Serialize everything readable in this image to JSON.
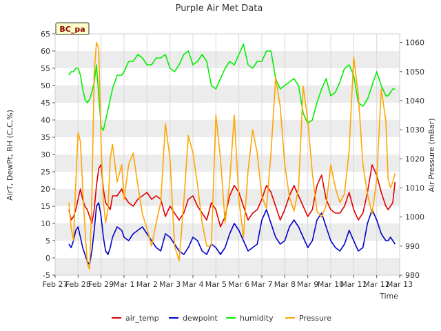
{
  "chart_data": {
    "type": "line",
    "title": "Purple Air Met Data",
    "xlabel": "Time",
    "ylabel_left": "AirT, DewPt, RH (C,C,%)",
    "ylabel_right": "Air Pressure (mBar)",
    "site_badge": "BC_pa",
    "x_ticks": [
      "Feb 27",
      "Feb 28",
      "Feb 29",
      "Mar 1",
      "Mar 2",
      "Mar 3",
      "Mar 4",
      "Mar 5",
      "Mar 6",
      "Mar 7",
      "Mar 8",
      "Mar 9",
      "Mar 10",
      "Mar 11",
      "Mar 12",
      "Mar 13"
    ],
    "y_left_ticks": [
      -5,
      0,
      5,
      10,
      15,
      20,
      25,
      30,
      35,
      40,
      45,
      50,
      55,
      60,
      65
    ],
    "y_right_ticks": [
      980,
      990,
      1000,
      1010,
      1020,
      1030,
      1040,
      1050,
      1060
    ],
    "ylim_left": [
      -5,
      65
    ],
    "ylim_right": [
      980,
      1063
    ],
    "xlim_days": [
      0,
      15
    ],
    "x_unit": "days from Feb 27",
    "grid": "horizontal bands",
    "legend_position": "bottom",
    "series": [
      {
        "name": "air_temp",
        "axis": "left",
        "color": "#e00000",
        "x": [
          0.6,
          0.7,
          0.8,
          0.9,
          1.0,
          1.1,
          1.2,
          1.3,
          1.4,
          1.5,
          1.6,
          1.7,
          1.8,
          1.9,
          2.0,
          2.1,
          2.2,
          2.3,
          2.4,
          2.5,
          2.7,
          2.9,
          3.0,
          3.2,
          3.4,
          3.6,
          3.8,
          4.0,
          4.2,
          4.4,
          4.6,
          4.8,
          5.0,
          5.2,
          5.4,
          5.6,
          5.8,
          6.0,
          6.2,
          6.4,
          6.6,
          6.8,
          7.0,
          7.2,
          7.4,
          7.6,
          7.8,
          8.0,
          8.2,
          8.4,
          8.6,
          8.8,
          9.0,
          9.2,
          9.4,
          9.6,
          9.8,
          10.0,
          10.2,
          10.4,
          10.6,
          10.8,
          11.0,
          11.2,
          11.4,
          11.6,
          11.8,
          12.0,
          12.2,
          12.4,
          12.6,
          12.8,
          13.0,
          13.2,
          13.4,
          13.6,
          13.8,
          14.0,
          14.2,
          14.4,
          14.5,
          14.6,
          14.7,
          14.8
        ],
        "y": [
          14,
          11,
          12,
          14,
          17,
          20,
          17,
          15,
          14,
          12,
          10,
          14,
          21,
          26,
          27,
          20,
          16,
          15,
          14,
          18,
          18,
          20,
          18,
          16,
          15,
          17,
          18,
          19,
          17,
          18,
          17,
          12,
          15,
          13,
          11,
          13,
          17,
          18,
          15,
          13,
          11,
          16,
          14,
          9,
          12,
          18,
          21,
          19,
          15,
          11,
          13,
          14,
          17,
          21,
          19,
          15,
          11,
          14,
          18,
          21,
          18,
          15,
          12,
          14,
          21,
          24,
          17,
          14,
          13,
          13,
          15,
          19,
          14,
          11,
          13,
          19,
          27,
          24,
          19,
          15,
          14,
          15,
          16,
          22
        ]
      },
      {
        "name": "dewpoint",
        "axis": "left",
        "color": "#0000cc",
        "x": [
          0.6,
          0.7,
          0.8,
          0.9,
          1.0,
          1.1,
          1.2,
          1.3,
          1.4,
          1.5,
          1.6,
          1.7,
          1.8,
          1.9,
          2.0,
          2.1,
          2.2,
          2.3,
          2.4,
          2.5,
          2.7,
          2.9,
          3.0,
          3.2,
          3.4,
          3.6,
          3.8,
          4.0,
          4.2,
          4.4,
          4.6,
          4.8,
          5.0,
          5.2,
          5.4,
          5.6,
          5.8,
          6.0,
          6.2,
          6.4,
          6.6,
          6.8,
          7.0,
          7.2,
          7.4,
          7.6,
          7.8,
          8.0,
          8.2,
          8.4,
          8.6,
          8.8,
          9.0,
          9.2,
          9.4,
          9.6,
          9.8,
          10.0,
          10.2,
          10.4,
          10.6,
          10.8,
          11.0,
          11.2,
          11.4,
          11.6,
          11.8,
          12.0,
          12.2,
          12.4,
          12.6,
          12.8,
          13.0,
          13.2,
          13.4,
          13.6,
          13.8,
          14.0,
          14.2,
          14.4,
          14.5,
          14.6,
          14.7,
          14.8
        ],
        "y": [
          4,
          3,
          5,
          8,
          9,
          6,
          3,
          1,
          -1,
          -2,
          2,
          8,
          15,
          16,
          12,
          6,
          2,
          1,
          3,
          6,
          9,
          8,
          6,
          5,
          7,
          8,
          9,
          7,
          5,
          3,
          2,
          7,
          6,
          4,
          2,
          1,
          3,
          6,
          5,
          2,
          1,
          4,
          3,
          1,
          3,
          7,
          10,
          8,
          5,
          2,
          3,
          4,
          11,
          14,
          10,
          6,
          4,
          5,
          9,
          11,
          9,
          6,
          3,
          5,
          11,
          13,
          9,
          5,
          3,
          2,
          4,
          8,
          5,
          2,
          3,
          10,
          14,
          11,
          7,
          5,
          5,
          6,
          5,
          4
        ]
      },
      {
        "name": "humidity",
        "axis": "left",
        "color": "#00ee00",
        "x": [
          0.6,
          0.7,
          0.8,
          0.9,
          1.0,
          1.1,
          1.2,
          1.3,
          1.4,
          1.5,
          1.6,
          1.7,
          1.8,
          1.9,
          2.0,
          2.1,
          2.2,
          2.3,
          2.4,
          2.5,
          2.7,
          2.9,
          3.0,
          3.2,
          3.4,
          3.6,
          3.8,
          4.0,
          4.2,
          4.4,
          4.6,
          4.8,
          5.0,
          5.2,
          5.4,
          5.6,
          5.8,
          6.0,
          6.2,
          6.4,
          6.6,
          6.8,
          7.0,
          7.2,
          7.4,
          7.6,
          7.8,
          8.0,
          8.2,
          8.4,
          8.6,
          8.8,
          9.0,
          9.2,
          9.4,
          9.6,
          9.8,
          10.0,
          10.2,
          10.4,
          10.6,
          10.8,
          11.0,
          11.2,
          11.4,
          11.6,
          11.8,
          12.0,
          12.2,
          12.4,
          12.6,
          12.8,
          13.0,
          13.2,
          13.4,
          13.6,
          13.8,
          14.0,
          14.2,
          14.4,
          14.5,
          14.6,
          14.7,
          14.8
        ],
        "y": [
          53,
          54,
          54,
          55,
          55,
          53,
          49,
          46,
          45,
          46,
          48,
          51,
          56,
          47,
          38,
          37,
          40,
          43,
          46,
          49,
          53,
          53,
          54,
          57,
          57,
          59,
          58,
          56,
          56,
          58,
          58,
          59,
          55,
          54,
          56,
          59,
          60,
          56,
          57,
          59,
          57,
          50,
          49,
          52,
          55,
          57,
          56,
          59,
          62,
          56,
          55,
          57,
          57,
          60,
          60,
          52,
          49,
          50,
          51,
          52,
          50,
          42,
          39,
          40,
          45,
          49,
          52,
          47,
          48,
          51,
          55,
          56,
          53,
          45,
          44,
          46,
          50,
          54,
          50,
          47,
          47,
          48,
          49,
          49
        ]
      },
      {
        "name": "Pressure",
        "axis": "right",
        "color": "#ffa500",
        "x": [
          0.6,
          0.7,
          0.8,
          0.9,
          1.0,
          1.1,
          1.2,
          1.3,
          1.4,
          1.5,
          1.6,
          1.7,
          1.8,
          1.9,
          2.0,
          2.1,
          2.2,
          2.3,
          2.4,
          2.5,
          2.7,
          2.9,
          3.0,
          3.2,
          3.4,
          3.6,
          3.8,
          4.0,
          4.2,
          4.4,
          4.6,
          4.8,
          5.0,
          5.2,
          5.4,
          5.6,
          5.8,
          6.0,
          6.2,
          6.4,
          6.6,
          6.8,
          7.0,
          7.2,
          7.4,
          7.6,
          7.8,
          8.0,
          8.2,
          8.4,
          8.6,
          8.8,
          9.0,
          9.2,
          9.4,
          9.6,
          9.8,
          10.0,
          10.2,
          10.4,
          10.6,
          10.8,
          11.0,
          11.2,
          11.4,
          11.6,
          11.8,
          12.0,
          12.2,
          12.4,
          12.6,
          12.8,
          13.0,
          13.2,
          13.4,
          13.6,
          13.8,
          14.0,
          14.2,
          14.4,
          14.5,
          14.6,
          14.7,
          14.8
        ],
        "y": [
          1005,
          996,
          992,
          1012,
          1029,
          1026,
          1010,
          996,
          984,
          982,
          1006,
          1050,
          1060,
          1058,
          1025,
          1005,
          998,
          1003,
          1020,
          1025,
          1012,
          1018,
          1006,
          1018,
          1022,
          1011,
          1001,
          996,
          990,
          998,
          1005,
          1032,
          1020,
          990,
          985,
          1005,
          1028,
          1022,
          1011,
          998,
          990,
          990,
          1035,
          1020,
          998,
          1012,
          1035,
          1006,
          993,
          1016,
          1030,
          1022,
          1007,
          1003,
          1022,
          1048,
          1038,
          1018,
          1007,
          1002,
          1010,
          1045,
          1033,
          1015,
          1002,
          1000,
          1004,
          1018,
          1010,
          1005,
          1008,
          1023,
          1055,
          1042,
          1018,
          1008,
          1001,
          1013,
          1044,
          1033,
          1013,
          1010,
          1012,
          1015
        ]
      }
    ]
  }
}
